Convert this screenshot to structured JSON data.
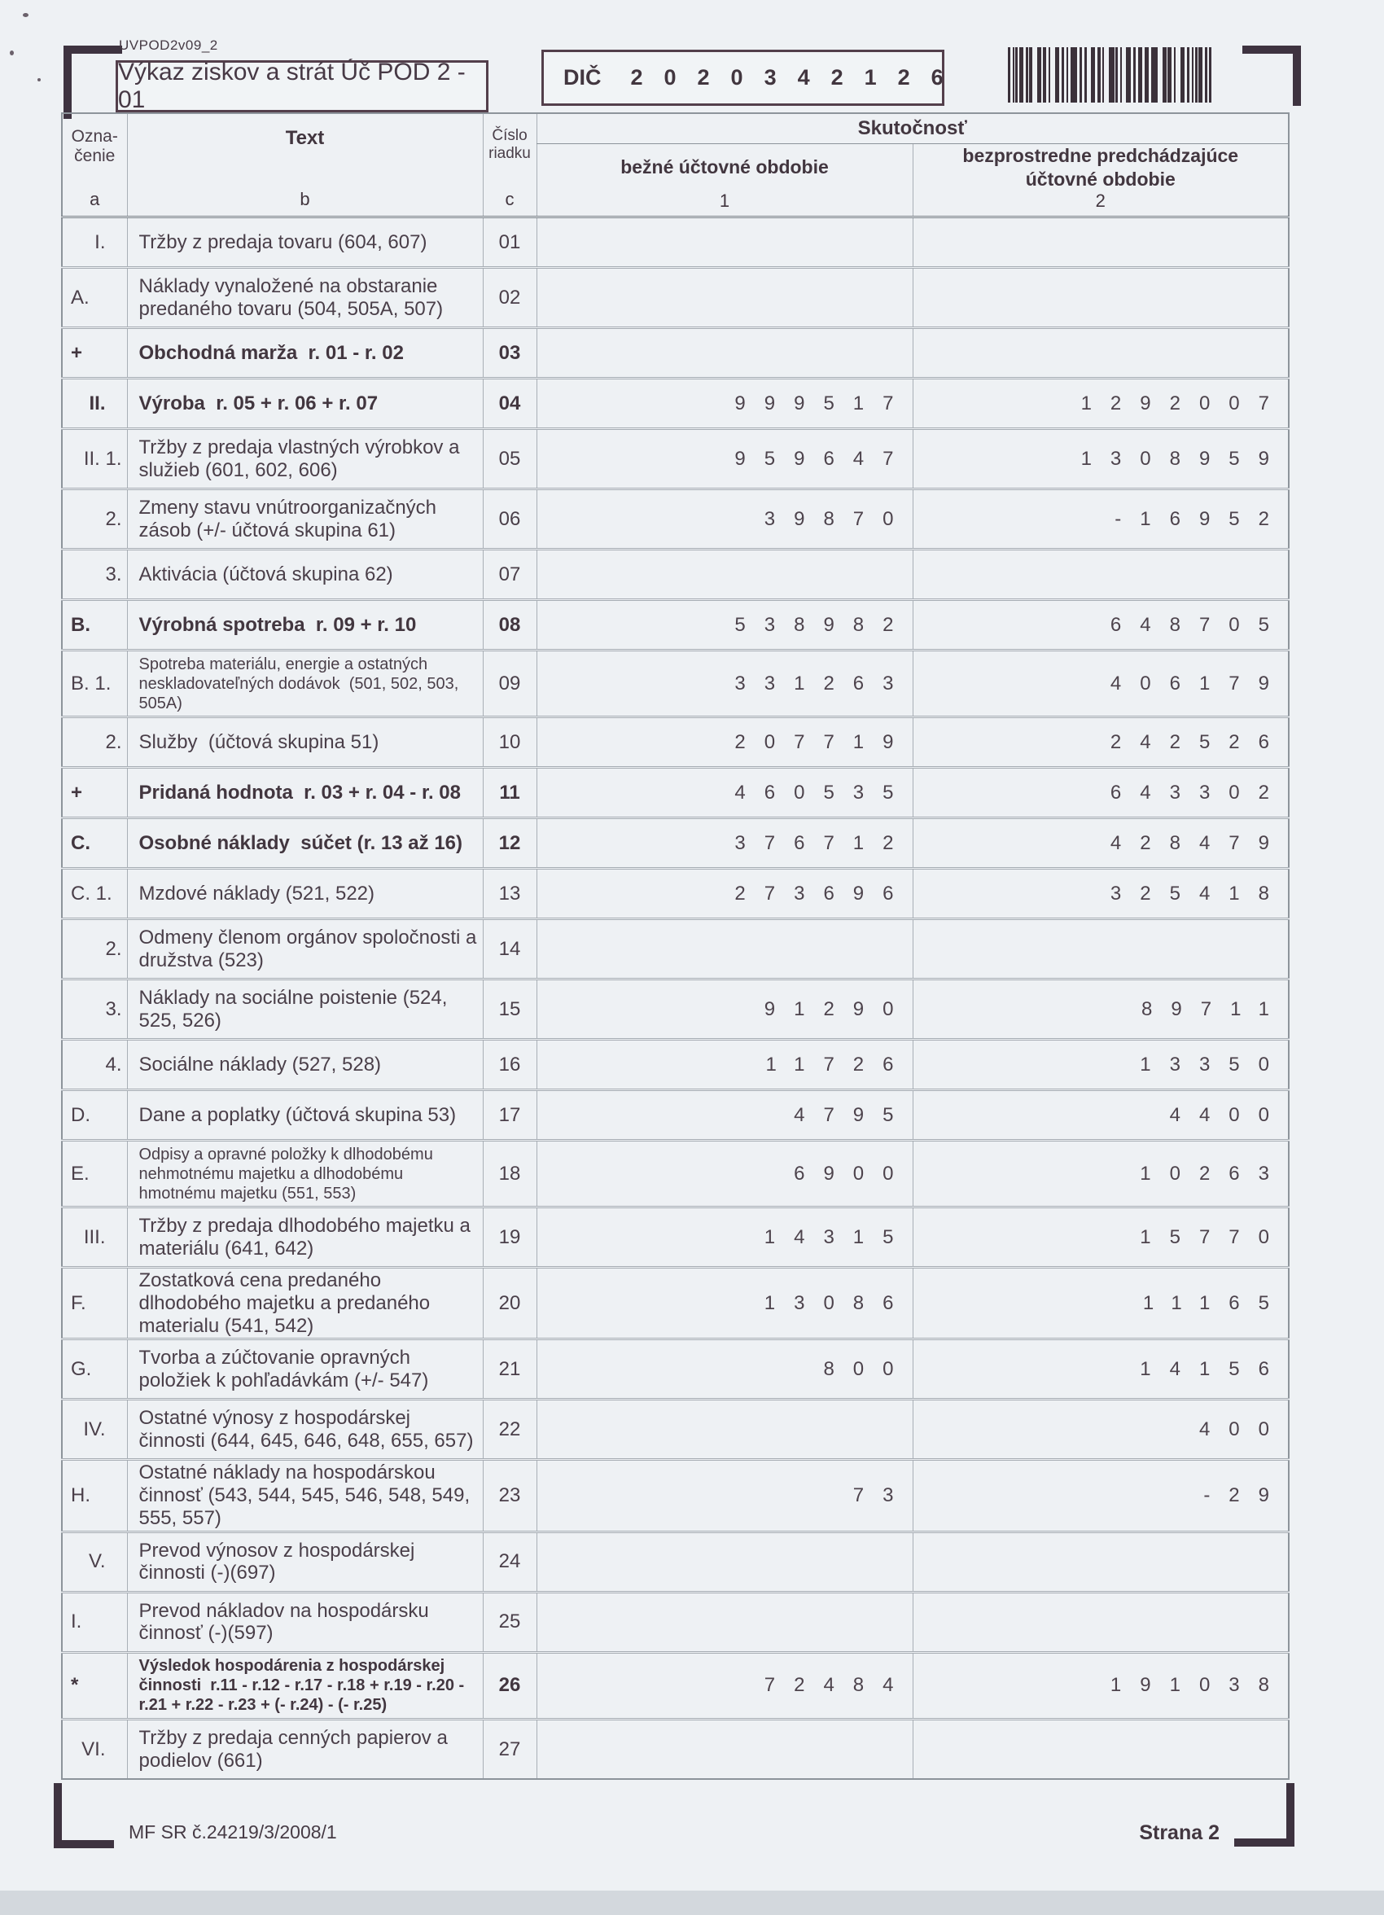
{
  "form": {
    "code": "UVPOD2v09_2",
    "title": "Výkaz ziskov a strát Úč POD 2 - 01",
    "dic_label": "DIČ",
    "dic_value": "2020342126"
  },
  "table": {
    "headers": {
      "col_a_line1": "Ozna-",
      "col_a_line2": "čenie",
      "col_b": "Text",
      "col_c_line1": "Číslo",
      "col_c_line2": "riadku",
      "group": "Skutočnosť",
      "col_1": "bežné účtovné obdobie",
      "col_2": "bezprostredne predchádzajúce účtovné obdobie",
      "letter_a": "a",
      "letter_b": "b",
      "letter_c": "c",
      "letter_1": "1",
      "letter_2": "2"
    },
    "rows": [
      {
        "designation": "I.",
        "align": "roman",
        "bold": false,
        "small": false,
        "lines": 1,
        "text": "Tržby z predaja tovaru (604, 607)",
        "line_no": "01",
        "current": "",
        "previous": ""
      },
      {
        "designation": "A.",
        "align": "left",
        "bold": false,
        "small": false,
        "lines": 2,
        "text": "Náklady vynaložené na obstaranie predaného tovaru (504, 505A, 507)",
        "line_no": "02",
        "current": "",
        "previous": ""
      },
      {
        "designation": "+",
        "align": "left",
        "bold": true,
        "small": false,
        "lines": 1,
        "text": "Obchodná marža  r. 01 - r. 02",
        "line_no": "03",
        "current": "",
        "previous": ""
      },
      {
        "designation": "II.",
        "align": "roman",
        "bold": true,
        "small": false,
        "lines": 1,
        "text": "Výroba  r. 05 + r. 06 + r. 07",
        "line_no": "04",
        "current": "999517",
        "previous": "1292007"
      },
      {
        "designation": "II. 1.",
        "align": "num",
        "bold": false,
        "small": false,
        "lines": 2,
        "text": "Tržby z predaja vlastných výrobkov a služieb (601, 602, 606)",
        "line_no": "05",
        "current": "959647",
        "previous": "1308959"
      },
      {
        "designation": "2.",
        "align": "num",
        "bold": false,
        "small": false,
        "lines": 2,
        "text": "Zmeny stavu vnútroorganizačných zásob (+/- účtová skupina 61)",
        "line_no": "06",
        "current": "39870",
        "previous": "-16952"
      },
      {
        "designation": "3.",
        "align": "num",
        "bold": false,
        "small": false,
        "lines": 1,
        "text": "Aktivácia (účtová skupina 62)",
        "line_no": "07",
        "current": "",
        "previous": ""
      },
      {
        "designation": "B.",
        "align": "left",
        "bold": true,
        "small": false,
        "lines": 1,
        "text": "Výrobná spotreba  r. 09 + r. 10",
        "line_no": "08",
        "current": "538982",
        "previous": "648705"
      },
      {
        "designation": "B. 1.",
        "align": "left",
        "bold": false,
        "small": true,
        "lines": 3,
        "text": "Spotreba materiálu, energie a ostatných neskladovateľných dodávok  (501, 502, 503, 505A)",
        "line_no": "09",
        "current": "331263",
        "previous": "406179"
      },
      {
        "designation": "2.",
        "align": "num",
        "bold": false,
        "small": false,
        "lines": 1,
        "text": "Služby  (účtová skupina 51)",
        "line_no": "10",
        "current": "207719",
        "previous": "242526"
      },
      {
        "designation": "+",
        "align": "left",
        "bold": true,
        "small": false,
        "lines": 1,
        "text": "Pridaná hodnota  r. 03 + r. 04 - r. 08",
        "line_no": "11",
        "current": "460535",
        "previous": "643302"
      },
      {
        "designation": "C.",
        "align": "left",
        "bold": true,
        "small": false,
        "lines": 1,
        "text": "Osobné náklady  súčet (r. 13 až 16)",
        "line_no": "12",
        "current": "376712",
        "previous": "428479"
      },
      {
        "designation": "C. 1.",
        "align": "left",
        "bold": false,
        "small": false,
        "lines": 1,
        "text": "Mzdové náklady (521, 522)",
        "line_no": "13",
        "current": "273696",
        "previous": "325418"
      },
      {
        "designation": "2.",
        "align": "num",
        "bold": false,
        "small": false,
        "lines": 2,
        "text": "Odmeny členom orgánov spoločnosti a družstva (523)",
        "line_no": "14",
        "current": "",
        "previous": ""
      },
      {
        "designation": "3.",
        "align": "num",
        "bold": false,
        "small": false,
        "lines": 2,
        "text": "Náklady na sociálne poistenie (524, 525, 526)",
        "line_no": "15",
        "current": "91290",
        "previous": "89711"
      },
      {
        "designation": "4.",
        "align": "num",
        "bold": false,
        "small": false,
        "lines": 1,
        "text": "Sociálne náklady (527, 528)",
        "line_no": "16",
        "current": "11726",
        "previous": "13350"
      },
      {
        "designation": "D.",
        "align": "left",
        "bold": false,
        "small": false,
        "lines": 1,
        "text": "Dane a poplatky (účtová skupina 53)",
        "line_no": "17",
        "current": "4795",
        "previous": "4400"
      },
      {
        "designation": "E.",
        "align": "left",
        "bold": false,
        "small": true,
        "lines": 3,
        "text": "Odpisy a opravné položky k dlhodobému nehmotnému majetku a dlhodobému hmotnému majetku (551, 553)",
        "line_no": "18",
        "current": "6900",
        "previous": "10263"
      },
      {
        "designation": "III.",
        "align": "roman",
        "bold": false,
        "small": false,
        "lines": 2,
        "text": "Tržby z predaja dlhodobého majetku a materiálu (641, 642)",
        "line_no": "19",
        "current": "14315",
        "previous": "15770"
      },
      {
        "designation": "F.",
        "align": "left",
        "bold": false,
        "small": false,
        "lines": 2,
        "text": "Zostatková cena predaného dlhodobého majetku a predaného materialu (541, 542)",
        "line_no": "20",
        "current": "13086",
        "previous": "11165"
      },
      {
        "designation": "G.",
        "align": "left",
        "bold": false,
        "small": false,
        "lines": 2,
        "text": "Tvorba a zúčtovanie opravných položiek k pohľadávkám (+/- 547)",
        "line_no": "21",
        "current": "800",
        "previous": "14156"
      },
      {
        "designation": "IV.",
        "align": "roman",
        "bold": false,
        "small": false,
        "lines": 2,
        "text": "Ostatné výnosy z hospodárskej činnosti (644, 645, 646, 648, 655, 657)",
        "line_no": "22",
        "current": "",
        "previous": "400"
      },
      {
        "designation": "H.",
        "align": "left",
        "bold": false,
        "small": false,
        "lines": 2,
        "text": "Ostatné náklady na hospodárskou činnosť (543, 544, 545, 546, 548, 549, 555, 557)",
        "line_no": "23",
        "current": "73",
        "previous": "-29"
      },
      {
        "designation": "V.",
        "align": "roman",
        "bold": false,
        "small": false,
        "lines": 2,
        "text": "Prevod výnosov z hospodárskej činnosti (-)(697)",
        "line_no": "24",
        "current": "",
        "previous": ""
      },
      {
        "designation": "I.",
        "align": "left",
        "bold": false,
        "small": false,
        "lines": 2,
        "text": "Prevod nákladov na hospodársku činnosť (-)(597)",
        "line_no": "25",
        "current": "",
        "previous": ""
      },
      {
        "designation": "*",
        "align": "left",
        "bold": true,
        "small": true,
        "lines": 3,
        "text": "Výsledok hospodárenia z hospodárskej činnosti  r.11 - r.12 - r.17 - r.18 + r.19 - r.20 - r.21 + r.22 - r.23 + (- r.24) - (- r.25)",
        "line_no": "26",
        "current": "72484",
        "previous": "191038"
      },
      {
        "designation": "VI.",
        "align": "roman",
        "bold": false,
        "small": false,
        "lines": 2,
        "text": "Tržby z predaja cenných papierov a podielov (661)",
        "line_no": "27",
        "current": "",
        "previous": ""
      }
    ]
  },
  "footer": {
    "doc_number": "MF SR č.24219/3/2008/1",
    "page": "Strana 2"
  }
}
